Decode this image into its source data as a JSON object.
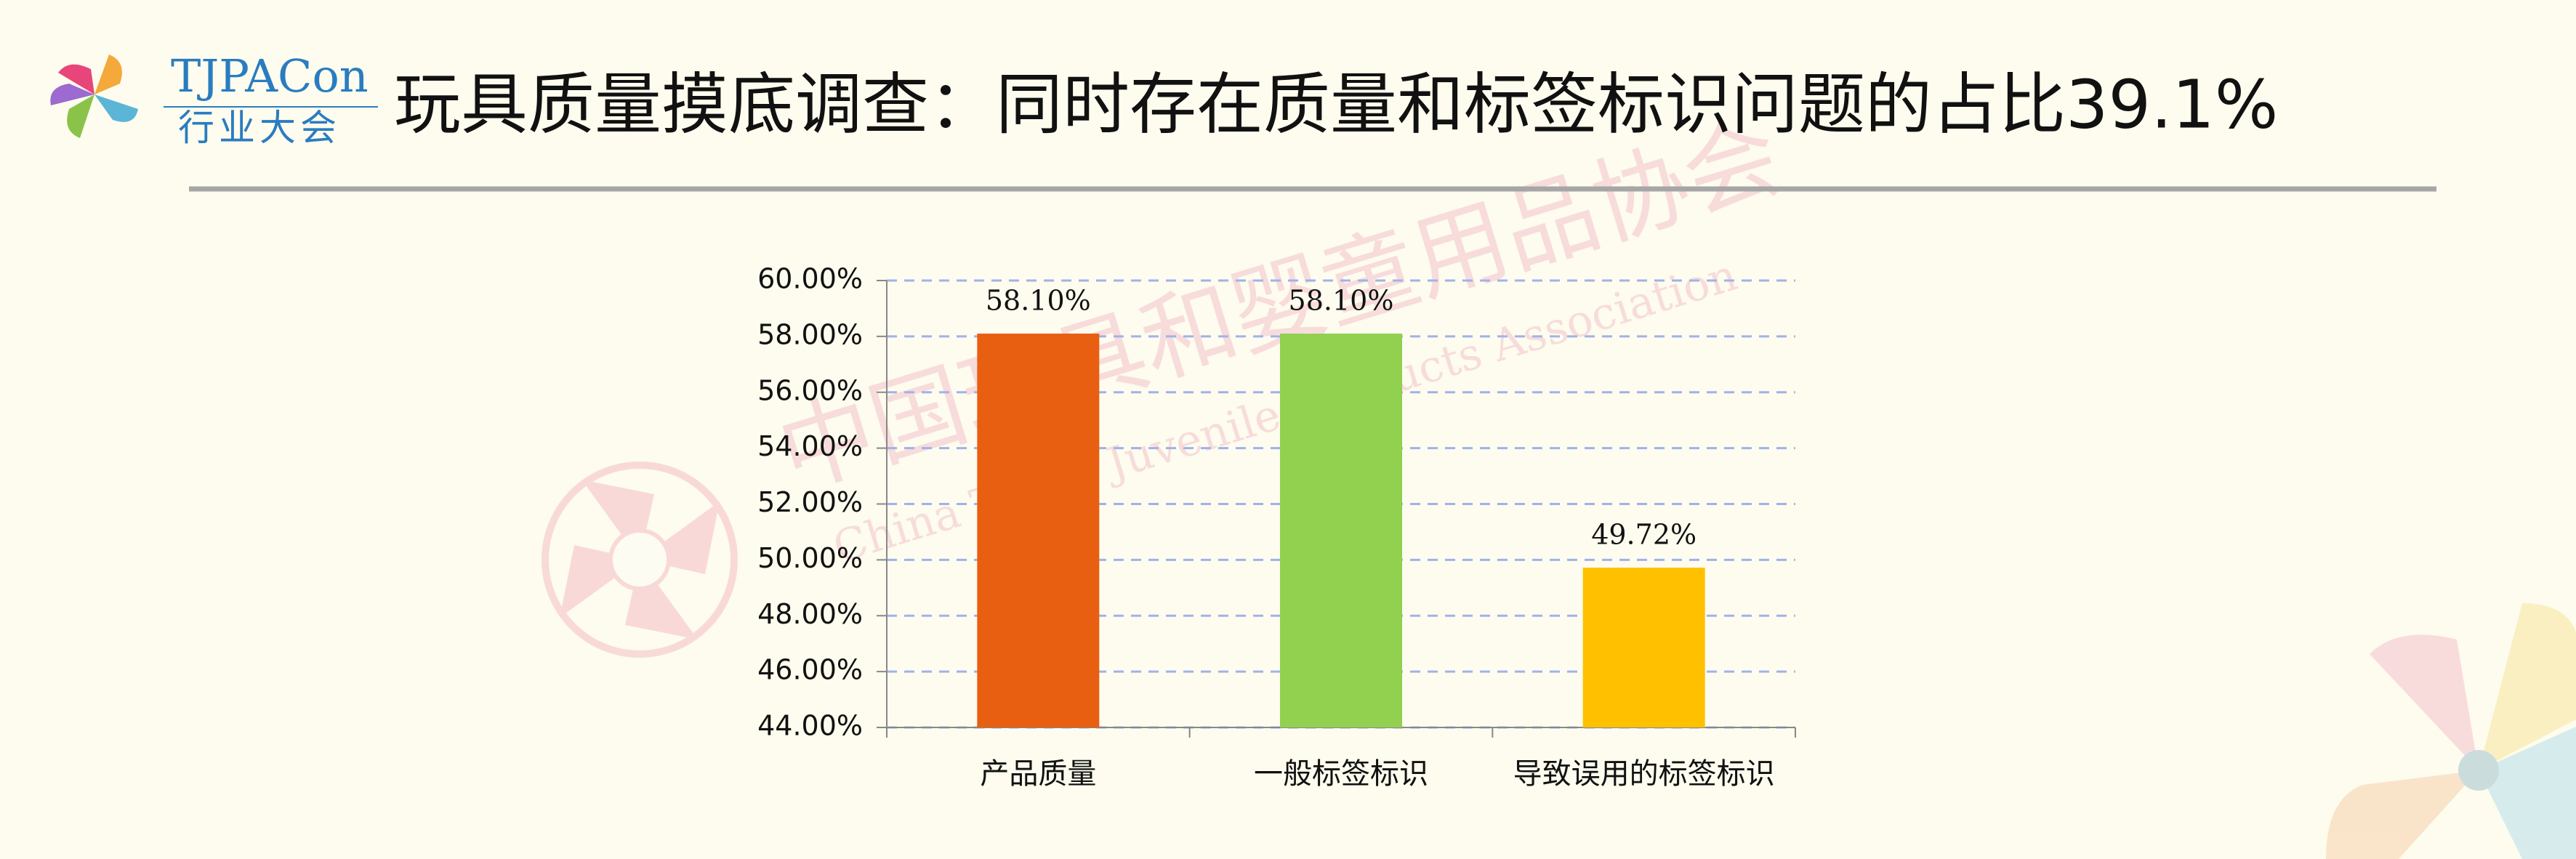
{
  "header": {
    "logo_text": "TJPACon",
    "logo_subtext": "行业大会",
    "title": "玩具质量摸底调查：同时存在质量和标签标识问题的占比39.1%"
  },
  "watermark": {
    "cn": "中国玩具和婴童用品协会",
    "en": "China Toy & Juvenile Products Association"
  },
  "chart_data": {
    "type": "bar",
    "categories": [
      "产品质量",
      "一般标签标识",
      "导致误用的标签标识"
    ],
    "values": [
      58.1,
      58.1,
      49.72
    ],
    "value_labels": [
      "58.10%",
      "58.10%",
      "49.72%"
    ],
    "colors": [
      "#e95f12",
      "#92d050",
      "#ffc000"
    ],
    "ylim": [
      44,
      60
    ],
    "yticks": [
      {
        "value": 44,
        "label": "44.00%"
      },
      {
        "value": 46,
        "label": "46.00%"
      },
      {
        "value": 48,
        "label": "48.00%"
      },
      {
        "value": 50,
        "label": "50.00%"
      },
      {
        "value": 52,
        "label": "52.00%"
      },
      {
        "value": 54,
        "label": "54.00%"
      },
      {
        "value": 56,
        "label": "56.00%"
      },
      {
        "value": 58,
        "label": "58.00%"
      },
      {
        "value": 60,
        "label": "60.00%"
      }
    ],
    "grid": true
  }
}
